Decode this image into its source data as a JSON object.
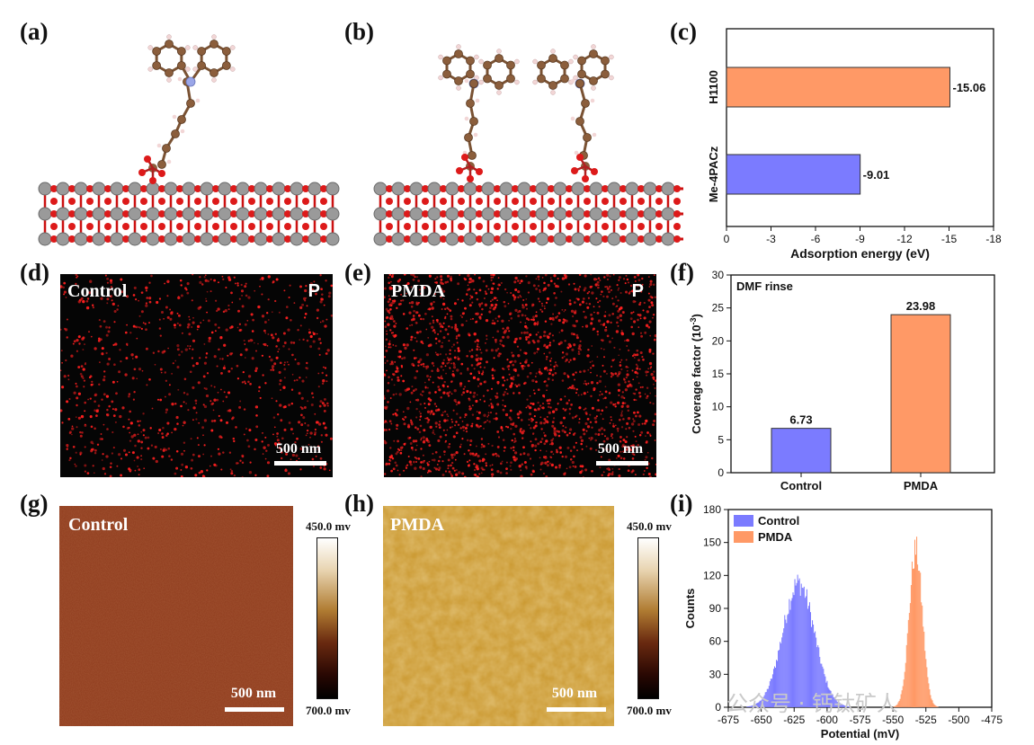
{
  "panel_labels": {
    "a": "(a)",
    "b": "(b)",
    "c": "(c)",
    "d": "(d)",
    "e": "(e)",
    "f": "(f)",
    "g": "(g)",
    "h": "(h)",
    "i": "(i)"
  },
  "panel_d": {
    "title": "Control",
    "element": "P",
    "scale": "500 nm"
  },
  "panel_e": {
    "title": "PMDA",
    "element": "P",
    "scale": "500 nm"
  },
  "panel_g": {
    "title": "Control",
    "scale": "500 nm",
    "cbar_top": "450.0 mv",
    "cbar_bottom": "700.0 mv"
  },
  "panel_h": {
    "title": "PMDA",
    "scale": "500 nm",
    "cbar_top": "450.0 mv",
    "cbar_bottom": "700.0 mv"
  },
  "watermark": "公众号 · 钙钛矿人",
  "colors": {
    "blue": "#7b7bff",
    "orange": "#ff9966",
    "map_dot": "#ff2020",
    "afm_control": "#8e3a1c",
    "afm_pmda": "#c9962c"
  },
  "chart_data": [
    {
      "id": "c",
      "type": "bar",
      "orientation": "horizontal",
      "categories": [
        "H1100",
        "Me-4PACz"
      ],
      "values": [
        -15.06,
        -9.01
      ],
      "value_labels": [
        "-15.06",
        "-9.01"
      ],
      "xlabel": "Adsorption energy (eV)",
      "xlim": [
        0,
        -18
      ],
      "xticks": [
        0,
        -3,
        -6,
        -9,
        -12,
        -15,
        -18
      ],
      "xtick_labels": [
        "0",
        "-3",
        "-6",
        "-9",
        "-12",
        "-15",
        "-18"
      ]
    },
    {
      "id": "f",
      "type": "bar",
      "categories": [
        "Control",
        "PMDA"
      ],
      "values": [
        6.73,
        23.98
      ],
      "value_labels": [
        "6.73",
        "23.98"
      ],
      "annotation": "DMF rinse",
      "ylabel_main": "Coverage factor (10",
      "ylabel_sup": "-3",
      "ylabel_end": ")",
      "ylim": [
        0,
        30
      ],
      "yticks": [
        0,
        5,
        10,
        15,
        20,
        25,
        30
      ],
      "ytick_labels": [
        "0",
        "5",
        "10",
        "15",
        "20",
        "25",
        "30"
      ]
    },
    {
      "id": "i",
      "type": "histogram",
      "series": [
        {
          "name": "Control",
          "center": -622,
          "sigma": 12,
          "peak": 113
        },
        {
          "name": "PMDA",
          "center": -533,
          "sigma": 5,
          "peak": 143
        }
      ],
      "xlabel": "Potential (mV)",
      "ylabel": "Counts",
      "xlim": [
        -675,
        -475
      ],
      "ylim": [
        0,
        180
      ],
      "xticks": [
        -675,
        -650,
        -625,
        -600,
        -575,
        -550,
        -525,
        -500,
        -475
      ],
      "xtick_labels": [
        "-675",
        "-650",
        "-625",
        "-600",
        "-575",
        "-550",
        "-525",
        "-500",
        "-475"
      ],
      "yticks": [
        0,
        30,
        60,
        90,
        120,
        150,
        180
      ],
      "ytick_labels": [
        "0",
        "30",
        "60",
        "90",
        "120",
        "150",
        "180"
      ]
    }
  ]
}
